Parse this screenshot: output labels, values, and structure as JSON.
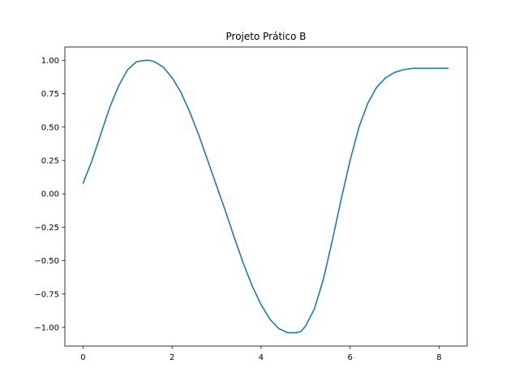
{
  "chart_data": {
    "type": "line",
    "title": "Projeto Prático B",
    "xlabel": "",
    "ylabel": "",
    "xlim": [
      -0.41,
      8.63
    ],
    "ylim": [
      -1.14,
      1.1
    ],
    "xticks": [
      0,
      2,
      4,
      6,
      8
    ],
    "xtick_labels": [
      "0",
      "2",
      "4",
      "6",
      "8"
    ],
    "yticks": [
      1.0,
      0.75,
      0.5,
      0.25,
      0.0,
      -0.25,
      -0.5,
      -0.75,
      -1.0
    ],
    "ytick_labels": [
      "1.00",
      "0.75",
      "0.50",
      "0.25",
      "0.00",
      "−0.25",
      "−0.50",
      "−0.75",
      "−1.00"
    ],
    "grid": false,
    "series": [
      {
        "color": "#1f77b4",
        "x": [
          0.0,
          0.2,
          0.4,
          0.6,
          0.8,
          1.0,
          1.2,
          1.4,
          1.5,
          1.6,
          1.8,
          2.0,
          2.2,
          2.4,
          2.6,
          2.8,
          3.0,
          3.2,
          3.4,
          3.6,
          3.8,
          4.0,
          4.2,
          4.4,
          4.6,
          4.8,
          4.9,
          5.0,
          5.2,
          5.4,
          5.6,
          5.8,
          6.0,
          6.2,
          6.4,
          6.6,
          6.8,
          7.0,
          7.2,
          7.4,
          7.6,
          7.8,
          8.0,
          8.2
        ],
        "y": [
          0.08,
          0.25,
          0.45,
          0.65,
          0.81,
          0.93,
          0.99,
          1.0,
          1.0,
          0.99,
          0.95,
          0.87,
          0.76,
          0.61,
          0.44,
          0.25,
          0.06,
          -0.13,
          -0.33,
          -0.52,
          -0.69,
          -0.83,
          -0.94,
          -1.01,
          -1.04,
          -1.04,
          -1.03,
          -0.99,
          -0.86,
          -0.64,
          -0.35,
          -0.04,
          0.25,
          0.5,
          0.68,
          0.8,
          0.87,
          0.91,
          0.93,
          0.94,
          0.94,
          0.94,
          0.94,
          0.94
        ]
      }
    ]
  }
}
